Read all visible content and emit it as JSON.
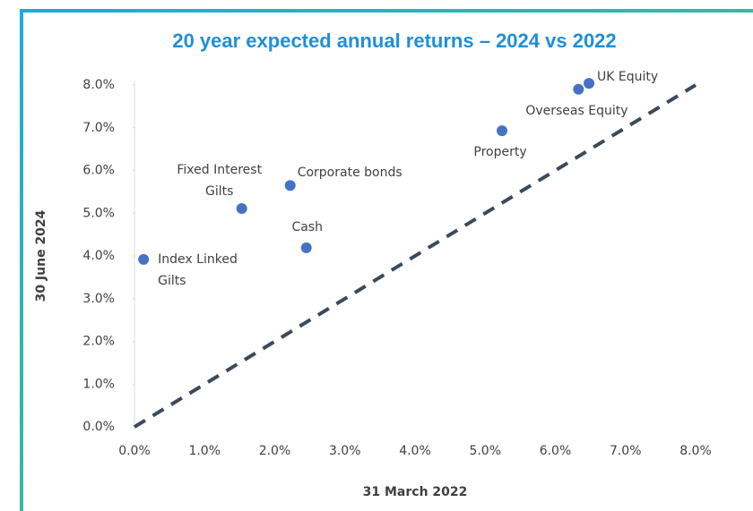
{
  "chart_data": {
    "type": "scatter",
    "title": "20 year expected annual returns – 2024 vs 2022",
    "x_label": "31 March 2022",
    "y_label": "30 June 2024",
    "labels": [
      [
        "Index Linked",
        "Gilts"
      ],
      [
        "Fixed Interest",
        "Gilts"
      ],
      [
        "Corporate bonds"
      ],
      [
        "Cash"
      ],
      [
        "Property"
      ],
      [
        "Overseas Equity"
      ],
      [
        "UK Equity"
      ]
    ],
    "x": [
      0.13,
      1.53,
      2.22,
      2.45,
      5.24,
      6.33,
      6.48
    ],
    "y": [
      3.92,
      5.11,
      5.65,
      4.19,
      6.93,
      7.9,
      8.04
    ],
    "color": "#4472c4",
    "reference_line": "y = x",
    "xlim": [
      0,
      8
    ],
    "ylim": [
      0,
      8
    ],
    "xticks": [
      {
        "value": 0,
        "label": "0.0%"
      },
      {
        "value": 1,
        "label": "1.0%"
      },
      {
        "value": 2,
        "label": "2.0%"
      },
      {
        "value": 3,
        "label": "3.0%"
      },
      {
        "value": 4,
        "label": "4.0%"
      },
      {
        "value": 5,
        "label": "5.0%"
      },
      {
        "value": 6,
        "label": "6.0%"
      },
      {
        "value": 7,
        "label": "7.0%"
      },
      {
        "value": 8,
        "label": "8.0%"
      }
    ],
    "yticks": [
      {
        "value": 0,
        "label": "0.0%"
      },
      {
        "value": 1,
        "label": "1.0%"
      },
      {
        "value": 2,
        "label": "2.0%"
      },
      {
        "value": 3,
        "label": "3.0%"
      },
      {
        "value": 4,
        "label": "4.0%"
      },
      {
        "value": 5,
        "label": "5.0%"
      },
      {
        "value": 6,
        "label": "6.0%"
      },
      {
        "value": 7,
        "label": "7.0%"
      },
      {
        "value": 8,
        "label": "8.0%"
      }
    ],
    "grid": false
  }
}
